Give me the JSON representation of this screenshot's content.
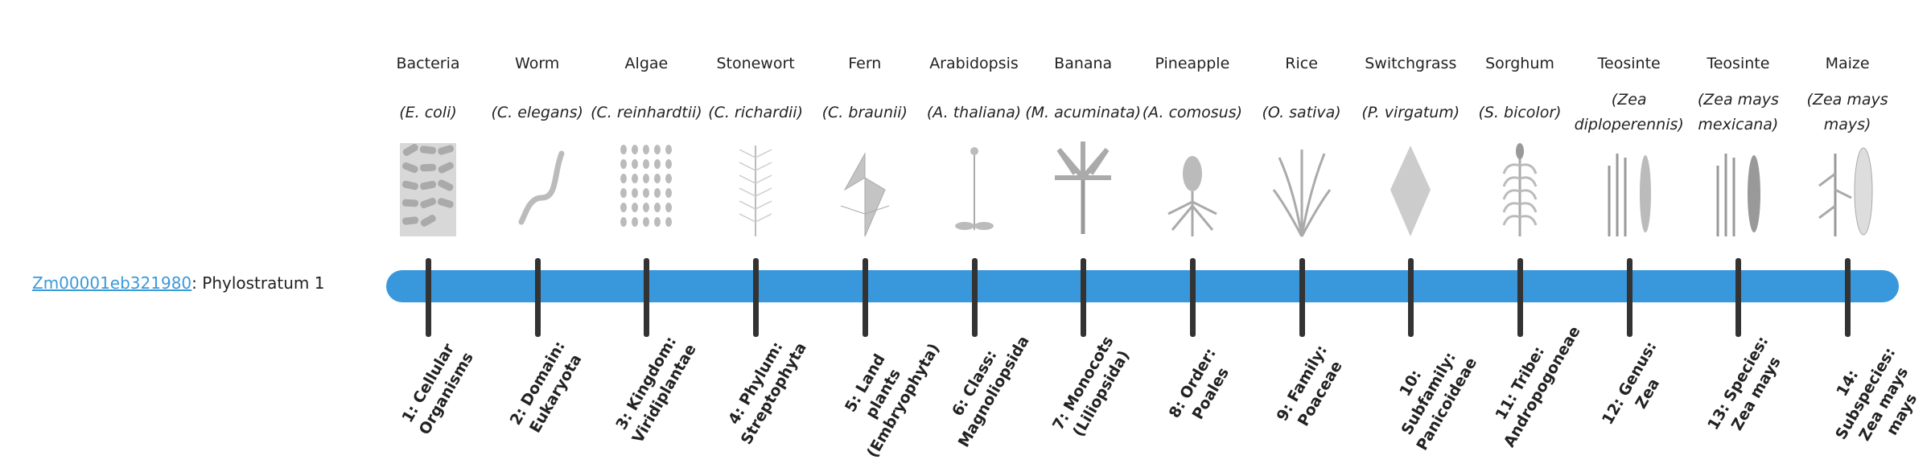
{
  "gene": {
    "id": "Zm00001eb321980",
    "suffix": ": Phylostratum 1"
  },
  "colors": {
    "bar": "#3898db",
    "link": "#3a9ad9",
    "tick": "#333333"
  },
  "strata": [
    {
      "common": "Bacteria",
      "species": "(E. coli)",
      "label": "1: Cellular Organisms",
      "icon": "bacteria-illustration"
    },
    {
      "common": "Worm",
      "species": "(C. elegans)",
      "label": "2: Domain: Eukaryota",
      "icon": "worm-illustration"
    },
    {
      "common": "Algae",
      "species": "(C. reinhardtii)",
      "label": "3: Kingdom: Viridiplantae",
      "icon": "algae-illustration"
    },
    {
      "common": "Stonewort",
      "species": "(C. richardii)",
      "label": "4: Phylum: Streptophyta",
      "icon": "stonewort-illustration"
    },
    {
      "common": "Fern",
      "species": "(C. braunii)",
      "label": "5: Land plants (Embryophyta)",
      "icon": "fern-illustration"
    },
    {
      "common": "Arabidopsis",
      "species": "(A. thaliana)",
      "label": "6: Class: Magnoliopsida",
      "icon": "arabidopsis-illustration"
    },
    {
      "common": "Banana",
      "species": "(M. acuminata)",
      "label": "7: Monocots (Liliopsida)",
      "icon": "banana-illustration"
    },
    {
      "common": "Pineapple",
      "species": "(A. comosus)",
      "label": "8: Order: Poales",
      "icon": "pineapple-illustration"
    },
    {
      "common": "Rice",
      "species": "(O. sativa)",
      "label": "9: Family: Poaceae",
      "icon": "rice-illustration"
    },
    {
      "common": "Switchgrass",
      "species": "(P. virgatum)",
      "label": "10: Subfamily: Panicoideae",
      "icon": "switchgrass-illustration"
    },
    {
      "common": "Sorghum",
      "species": "(S. bicolor)",
      "label": "11: Tribe: Andropogoneae",
      "icon": "sorghum-illustration"
    },
    {
      "common": "Teosinte",
      "species": "(Zea diploperennis)",
      "label": "12: Genus: Zea",
      "icon": "teosinte-illustration"
    },
    {
      "common": "Teosinte",
      "species": "(Zea mays mexicana)",
      "label": "13: Species: Zea mays",
      "icon": "teosinte-mexicana-illustration"
    },
    {
      "common": "Maize",
      "species": "(Zea mays mays)",
      "label": "14: Subspecies: Zea mays mays",
      "icon": "maize-illustration"
    }
  ]
}
